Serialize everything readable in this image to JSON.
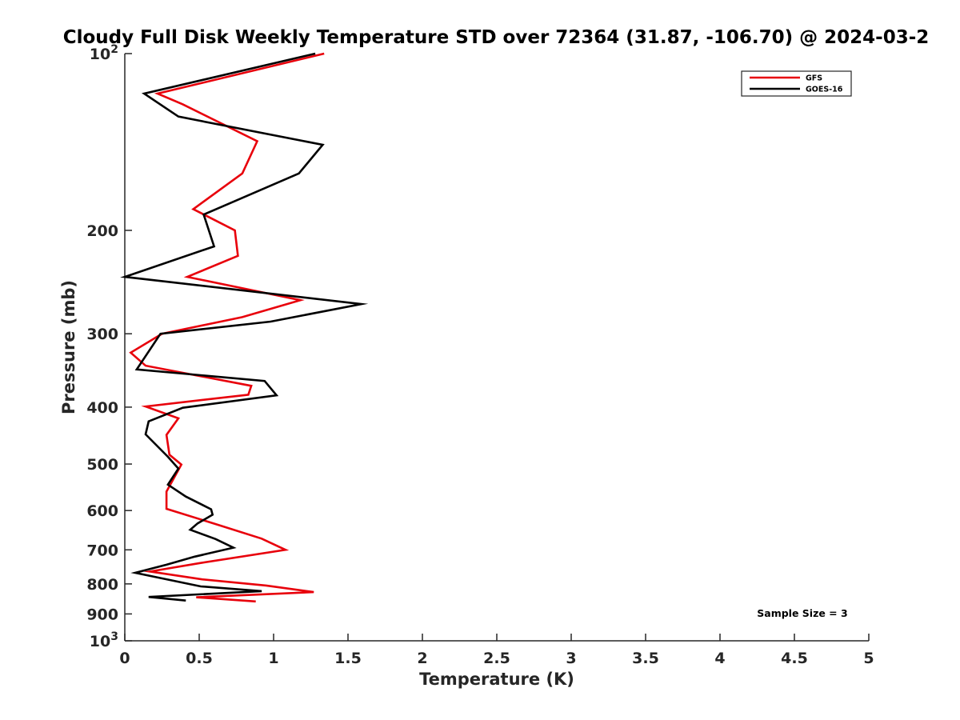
{
  "chart_data": {
    "type": "line",
    "title": "Cloudy Full Disk Weekly Temperature STD over 72364 (31.87, -106.70) @ 2024-03-2",
    "xlabel": "Temperature (K)",
    "ylabel": "Pressure (mb)",
    "xlim": [
      0,
      5
    ],
    "ylim": [
      100,
      1000
    ],
    "y_scale": "log",
    "y_reversed": true,
    "xticks": [
      "0",
      "0.5",
      "1",
      "1.5",
      "2",
      "2.5",
      "3",
      "3.5",
      "4",
      "4.5",
      "5"
    ],
    "yticks": [
      {
        "value": 100,
        "base": "10",
        "exp": "2"
      },
      {
        "value": 200,
        "label": "200"
      },
      {
        "value": 300,
        "label": "300"
      },
      {
        "value": 400,
        "label": "400"
      },
      {
        "value": 500,
        "label": "500"
      },
      {
        "value": 600,
        "label": "600"
      },
      {
        "value": 700,
        "label": "700"
      },
      {
        "value": 800,
        "label": "800"
      },
      {
        "value": 900,
        "label": "900"
      },
      {
        "value": 1000,
        "base": "10",
        "exp": "3"
      }
    ],
    "grid": false,
    "legend_position": "top-right",
    "series": [
      {
        "name": "GFS",
        "color": "#e8000b",
        "points": [
          [
            1.34,
            100
          ],
          [
            0.22,
            117
          ],
          [
            0.39,
            122
          ],
          [
            0.89,
            141
          ],
          [
            0.79,
            160
          ],
          [
            0.46,
            184
          ],
          [
            0.74,
            200
          ],
          [
            0.76,
            221
          ],
          [
            0.42,
            240
          ],
          [
            1.18,
            263
          ],
          [
            0.79,
            281
          ],
          [
            0.25,
            300
          ],
          [
            0.04,
            323
          ],
          [
            0.14,
            340
          ],
          [
            0.85,
            368
          ],
          [
            0.83,
            381
          ],
          [
            0.14,
            399
          ],
          [
            0.36,
            418
          ],
          [
            0.28,
            446
          ],
          [
            0.3,
            482
          ],
          [
            0.38,
            501
          ],
          [
            0.28,
            557
          ],
          [
            0.28,
            596
          ],
          [
            0.63,
            635
          ],
          [
            0.92,
            670
          ],
          [
            1.08,
            700
          ],
          [
            0.51,
            737
          ],
          [
            0.17,
            762
          ],
          [
            0.52,
            786
          ],
          [
            0.95,
            805
          ],
          [
            1.27,
            826
          ],
          [
            0.48,
            843
          ],
          [
            0.88,
            857
          ]
        ]
      },
      {
        "name": "GOES-16",
        "color": "#000000",
        "points": [
          [
            1.28,
            100
          ],
          [
            0.13,
            117
          ],
          [
            0.36,
            128
          ],
          [
            1.33,
            143
          ],
          [
            1.17,
            160
          ],
          [
            0.53,
            188
          ],
          [
            0.6,
            213
          ],
          [
            0.0,
            240
          ],
          [
            1.59,
            267
          ],
          [
            0.98,
            286
          ],
          [
            0.24,
            300
          ],
          [
            0.08,
            345
          ],
          [
            0.94,
            361
          ],
          [
            1.02,
            382
          ],
          [
            0.39,
            401
          ],
          [
            0.16,
            423
          ],
          [
            0.14,
            445
          ],
          [
            0.29,
            486
          ],
          [
            0.36,
            509
          ],
          [
            0.29,
            542
          ],
          [
            0.41,
            568
          ],
          [
            0.58,
            597
          ],
          [
            0.59,
            610
          ],
          [
            0.49,
            631
          ],
          [
            0.44,
            647
          ],
          [
            0.61,
            671
          ],
          [
            0.73,
            694
          ],
          [
            0.47,
            719
          ],
          [
            0.28,
            742
          ],
          [
            0.07,
            766
          ],
          [
            0.51,
            808
          ],
          [
            0.92,
            823
          ],
          [
            0.16,
            842
          ],
          [
            0.41,
            854
          ]
        ]
      }
    ],
    "annotation": "Sample Size = 3"
  }
}
